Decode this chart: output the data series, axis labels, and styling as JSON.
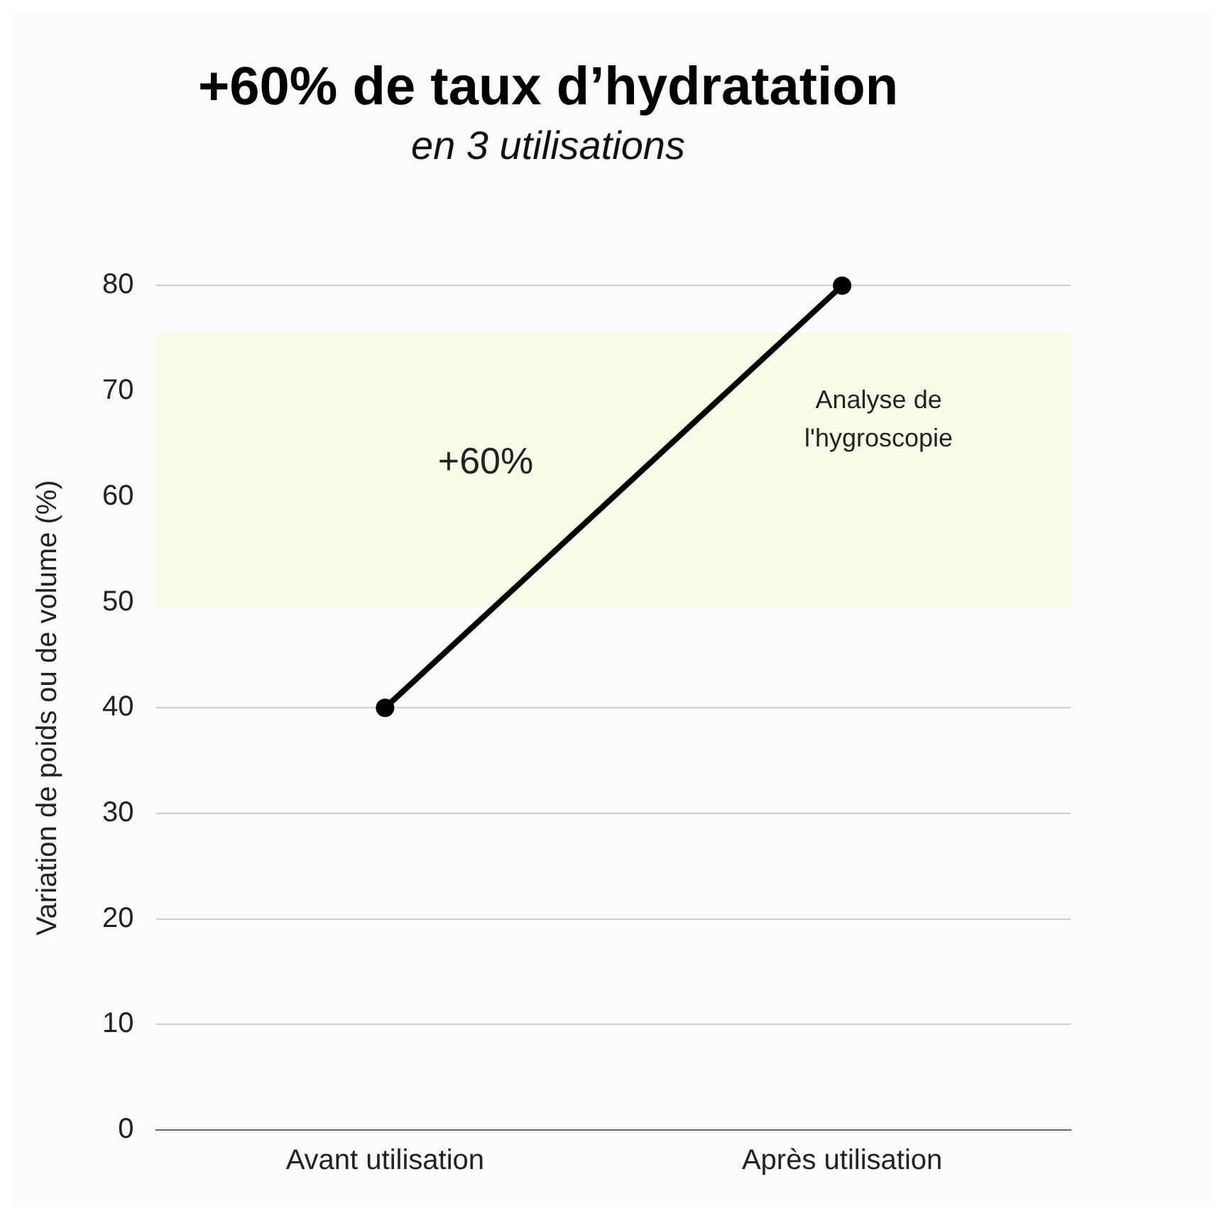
{
  "chart_data": {
    "type": "line",
    "title": "+60% de taux d’hydratation",
    "subtitle": "en 3 utilisations",
    "ylabel": "Variation de poids ou de volume (%)",
    "categories": [
      "Avant utilisation",
      "Après utilisation"
    ],
    "series": [
      {
        "color": "#000000",
        "values": [
          40,
          80
        ]
      }
    ],
    "ylim": [
      0,
      80
    ],
    "yticks": [
      0,
      10,
      20,
      30,
      40,
      50,
      60,
      70,
      80
    ],
    "grid": "y",
    "legend": false,
    "marker": "circle",
    "line_style": "solid",
    "bands": [
      {
        "axis": "y",
        "from": 49.5,
        "to": 75.5,
        "label": "Analyse de l'hygroscopie",
        "color": "#f8fbe6"
      }
    ],
    "annotations": [
      "+60%"
    ]
  }
}
